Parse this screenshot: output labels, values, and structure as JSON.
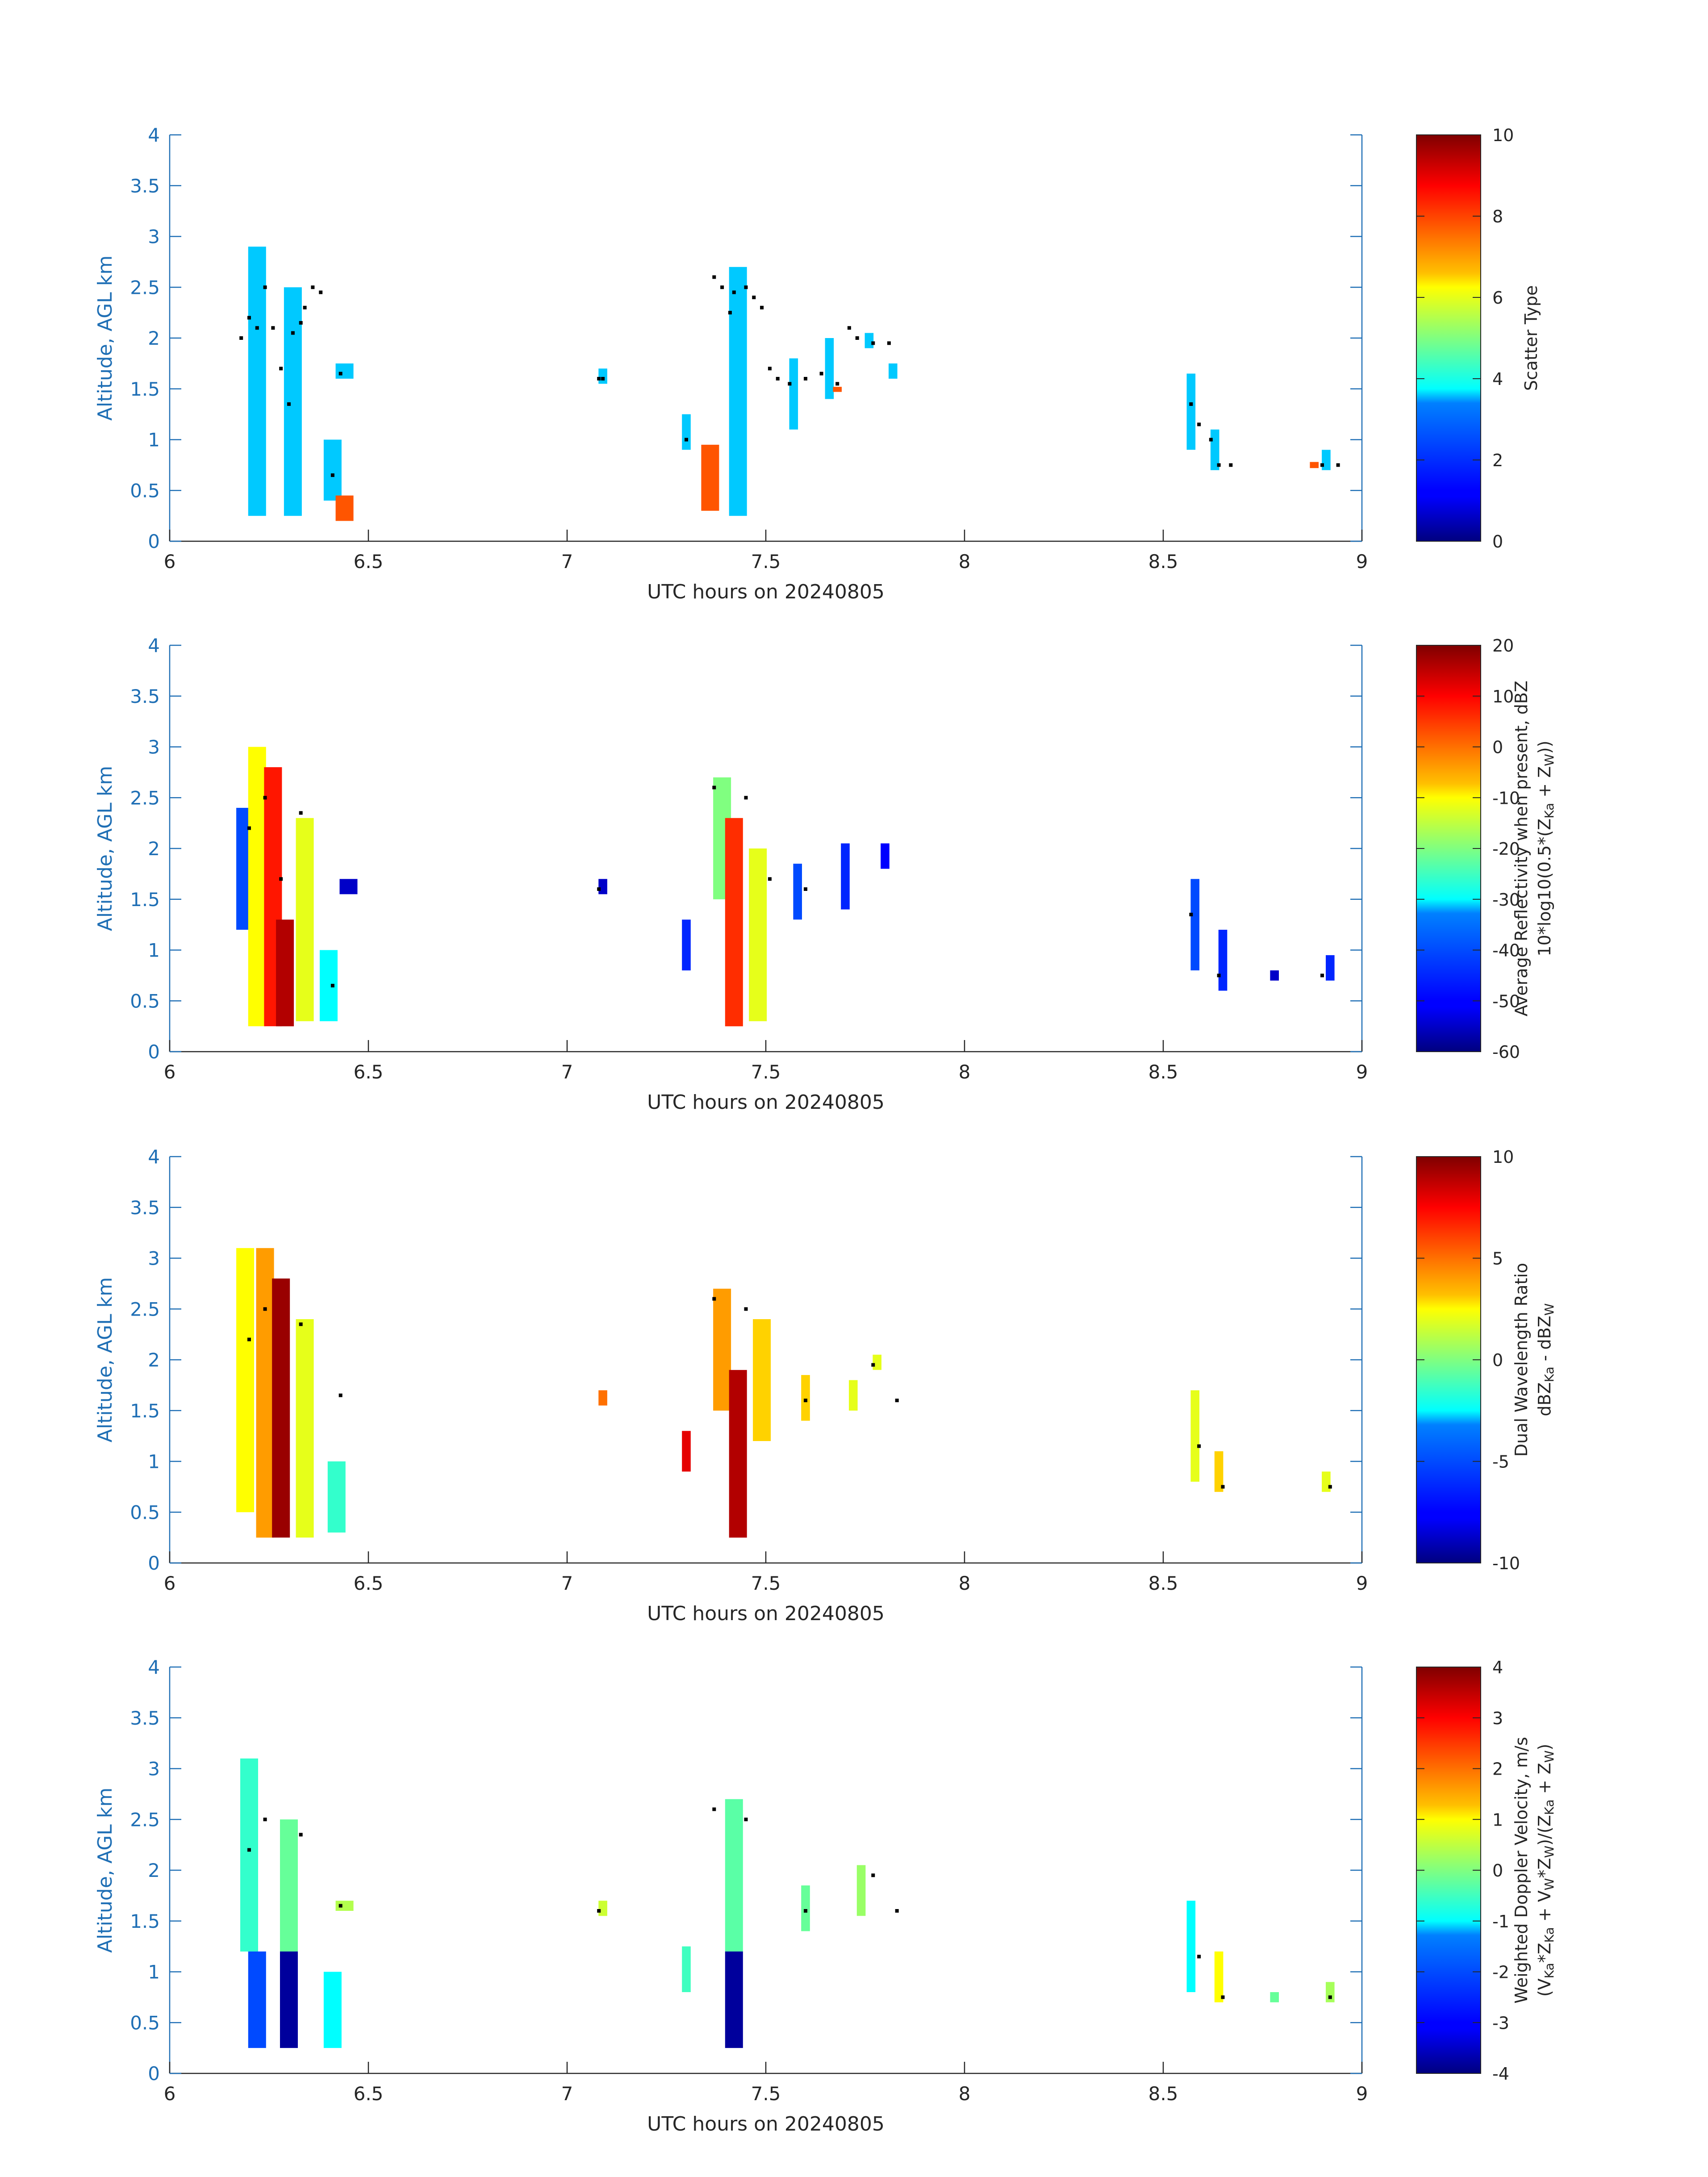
{
  "chart_data": [
    {
      "type": "heatmap",
      "xlabel": "UTC hours on 20240805",
      "ylabel": "Altitude, AGL km",
      "xlim": [
        6,
        9
      ],
      "ylim": [
        0,
        4
      ],
      "xticks": [
        "6",
        "6.5",
        "7",
        "7.5",
        "8",
        "8.5",
        "9"
      ],
      "yticks": [
        "0",
        "0.5",
        "1",
        "1.5",
        "2",
        "2.5",
        "3",
        "3.5",
        "4"
      ],
      "colorbar_label": [
        "Scatter Type"
      ],
      "colorbar_range": [
        0,
        10
      ],
      "colorbar_ticks": [
        "0",
        "2",
        "4",
        "6",
        "8",
        "10"
      ],
      "colormap": "jet",
      "grid": false,
      "cells": [
        [
          6.22,
          0.25,
          2.9,
          3.6
        ],
        [
          6.31,
          0.25,
          2.5,
          3.6
        ],
        [
          6.41,
          0.4,
          1.0,
          3.6
        ],
        [
          6.44,
          1.6,
          1.75,
          3.6
        ],
        [
          7.09,
          1.55,
          1.7,
          3.6
        ],
        [
          7.3,
          0.9,
          1.25,
          3.6
        ],
        [
          7.43,
          0.25,
          2.7,
          3.6
        ],
        [
          7.57,
          1.1,
          1.8,
          3.6
        ],
        [
          7.66,
          1.4,
          2.0,
          3.6
        ],
        [
          7.76,
          1.9,
          2.05,
          3.6
        ],
        [
          7.82,
          1.6,
          1.75,
          3.6
        ],
        [
          8.57,
          0.9,
          1.65,
          3.6
        ],
        [
          8.63,
          0.7,
          1.1,
          3.6
        ],
        [
          8.91,
          0.7,
          0.9,
          3.6
        ],
        [
          6.44,
          0.2,
          0.45,
          7.8
        ],
        [
          7.36,
          0.3,
          0.95,
          7.8
        ],
        [
          7.68,
          1.47,
          1.52,
          7.8
        ],
        [
          8.88,
          0.72,
          0.78,
          7.8
        ]
      ],
      "points": [
        [
          6.18,
          2.0
        ],
        [
          6.2,
          2.2
        ],
        [
          6.22,
          2.1
        ],
        [
          6.24,
          2.5
        ],
        [
          6.26,
          2.1
        ],
        [
          6.28,
          1.7
        ],
        [
          6.3,
          1.35
        ],
        [
          6.31,
          2.05
        ],
        [
          6.33,
          2.15
        ],
        [
          6.34,
          2.3
        ],
        [
          6.36,
          2.5
        ],
        [
          6.38,
          2.45
        ],
        [
          6.41,
          0.65
        ],
        [
          6.43,
          1.65
        ],
        [
          7.08,
          1.6
        ],
        [
          7.09,
          1.6
        ],
        [
          7.3,
          1.0
        ],
        [
          7.37,
          2.6
        ],
        [
          7.39,
          2.5
        ],
        [
          7.41,
          2.25
        ],
        [
          7.42,
          2.45
        ],
        [
          7.45,
          2.5
        ],
        [
          7.47,
          2.4
        ],
        [
          7.49,
          2.3
        ],
        [
          7.51,
          1.7
        ],
        [
          7.53,
          1.6
        ],
        [
          7.56,
          1.55
        ],
        [
          7.6,
          1.6
        ],
        [
          7.64,
          1.65
        ],
        [
          7.68,
          1.55
        ],
        [
          7.71,
          2.1
        ],
        [
          7.73,
          2.0
        ],
        [
          7.77,
          1.95
        ],
        [
          7.81,
          1.95
        ],
        [
          8.57,
          1.35
        ],
        [
          8.59,
          1.15
        ],
        [
          8.62,
          1.0
        ],
        [
          8.64,
          0.75
        ],
        [
          8.67,
          0.75
        ],
        [
          8.9,
          0.75
        ],
        [
          8.94,
          0.75
        ]
      ]
    },
    {
      "type": "heatmap",
      "xlabel": "UTC hours on 20240805",
      "ylabel": "Altitude, AGL km",
      "xlim": [
        6,
        9
      ],
      "ylim": [
        0,
        4
      ],
      "xticks": [
        "6",
        "6.5",
        "7",
        "7.5",
        "8",
        "8.5",
        "9"
      ],
      "yticks": [
        "0",
        "0.5",
        "1",
        "1.5",
        "2",
        "2.5",
        "3",
        "3.5",
        "4"
      ],
      "colorbar_label": [
        "Average Reflectivity when present, dBZ",
        "10*log10(0.5*(Z_Ka + Z_W))"
      ],
      "colorbar_range": [
        -60,
        20
      ],
      "colorbar_ticks": [
        "-60",
        "-50",
        "-40",
        "-30",
        "-20",
        "-10",
        "0",
        "10",
        "20"
      ],
      "colormap": "jet",
      "grid": false,
      "cells": [
        [
          6.19,
          1.2,
          2.4,
          -40
        ],
        [
          6.22,
          0.25,
          3.0,
          -10
        ],
        [
          6.26,
          0.25,
          2.8,
          8
        ],
        [
          6.29,
          0.25,
          1.3,
          16
        ],
        [
          6.34,
          0.3,
          2.3,
          -12
        ],
        [
          6.4,
          0.3,
          1.0,
          -30
        ],
        [
          6.45,
          1.55,
          1.7,
          -55
        ],
        [
          7.09,
          1.55,
          1.7,
          -55
        ],
        [
          7.3,
          0.8,
          1.3,
          -45
        ],
        [
          7.39,
          1.5,
          2.7,
          -20
        ],
        [
          7.42,
          0.25,
          2.3,
          6
        ],
        [
          7.48,
          0.3,
          2.0,
          -12
        ],
        [
          7.58,
          1.3,
          1.85,
          -40
        ],
        [
          7.7,
          1.4,
          2.05,
          -45
        ],
        [
          7.8,
          1.8,
          2.05,
          -50
        ],
        [
          8.58,
          0.8,
          1.7,
          -40
        ],
        [
          8.65,
          0.6,
          1.2,
          -45
        ],
        [
          8.78,
          0.7,
          0.8,
          -55
        ],
        [
          8.92,
          0.7,
          0.95,
          -45
        ]
      ],
      "points": [
        [
          6.2,
          2.2
        ],
        [
          6.24,
          2.5
        ],
        [
          6.28,
          1.7
        ],
        [
          6.33,
          2.35
        ],
        [
          6.41,
          0.65
        ],
        [
          7.08,
          1.6
        ],
        [
          7.37,
          2.6
        ],
        [
          7.45,
          2.5
        ],
        [
          7.51,
          1.7
        ],
        [
          7.6,
          1.6
        ],
        [
          8.57,
          1.35
        ],
        [
          8.64,
          0.75
        ],
        [
          8.9,
          0.75
        ]
      ]
    },
    {
      "type": "heatmap",
      "xlabel": "UTC hours on 20240805",
      "ylabel": "Altitude, AGL km",
      "xlim": [
        6,
        9
      ],
      "ylim": [
        0,
        4
      ],
      "xticks": [
        "6",
        "6.5",
        "7",
        "7.5",
        "8",
        "8.5",
        "9"
      ],
      "yticks": [
        "0",
        "0.5",
        "1",
        "1.5",
        "2",
        "2.5",
        "3",
        "3.5",
        "4"
      ],
      "colorbar_label": [
        "Dual Wavelength Ratio",
        "dBZ_Ka - dBZ_W"
      ],
      "colorbar_range": [
        -10,
        10
      ],
      "colorbar_ticks": [
        "-10",
        "-5",
        "0",
        "5",
        "10"
      ],
      "colormap": "jet",
      "grid": false,
      "cells": [
        [
          6.19,
          0.5,
          3.1,
          2.5
        ],
        [
          6.24,
          0.25,
          3.1,
          4
        ],
        [
          6.28,
          0.25,
          2.8,
          9.5
        ],
        [
          6.34,
          0.25,
          2.4,
          2
        ],
        [
          6.42,
          0.3,
          1.0,
          -1.5
        ],
        [
          7.09,
          1.55,
          1.7,
          5
        ],
        [
          7.3,
          0.9,
          1.3,
          8
        ],
        [
          7.39,
          1.5,
          2.7,
          4
        ],
        [
          7.43,
          0.25,
          1.9,
          9
        ],
        [
          7.49,
          1.2,
          2.4,
          3
        ],
        [
          7.6,
          1.4,
          1.85,
          3
        ],
        [
          7.72,
          1.5,
          1.8,
          2
        ],
        [
          7.78,
          1.9,
          2.05,
          2
        ],
        [
          8.58,
          0.8,
          1.7,
          2
        ],
        [
          8.64,
          0.7,
          1.1,
          3
        ],
        [
          8.91,
          0.7,
          0.9,
          2
        ]
      ],
      "points": [
        [
          6.2,
          2.2
        ],
        [
          6.24,
          2.5
        ],
        [
          6.33,
          2.35
        ],
        [
          6.43,
          1.65
        ],
        [
          7.37,
          2.6
        ],
        [
          7.45,
          2.5
        ],
        [
          7.6,
          1.6
        ],
        [
          7.77,
          1.95
        ],
        [
          7.83,
          1.6
        ],
        [
          8.59,
          1.15
        ],
        [
          8.65,
          0.75
        ],
        [
          8.92,
          0.75
        ]
      ]
    },
    {
      "type": "heatmap",
      "xlabel": "UTC hours on 20240805",
      "ylabel": "Altitude, AGL km",
      "xlim": [
        6,
        9
      ],
      "ylim": [
        0,
        4
      ],
      "xticks": [
        "6",
        "6.5",
        "7",
        "7.5",
        "8",
        "8.5",
        "9"
      ],
      "yticks": [
        "0",
        "0.5",
        "1",
        "1.5",
        "2",
        "2.5",
        "3",
        "3.5",
        "4"
      ],
      "colorbar_label": [
        "Weighted Doppler Velocity, m/s",
        "(V_Ka*Z_Ka + V_W*Z_W)/(Z_Ka + Z_W)"
      ],
      "colorbar_range": [
        -4,
        4
      ],
      "colorbar_ticks": [
        "-4",
        "-3",
        "-2",
        "-1",
        "0",
        "1",
        "2",
        "3",
        "4"
      ],
      "colormap": "jet",
      "grid": false,
      "cells": [
        [
          6.2,
          1.2,
          3.1,
          -0.6
        ],
        [
          6.3,
          1.2,
          2.5,
          -0.2
        ],
        [
          6.22,
          0.25,
          1.2,
          -2.0
        ],
        [
          6.3,
          0.25,
          1.2,
          -3.8
        ],
        [
          6.41,
          0.25,
          1.0,
          -1.0
        ],
        [
          6.44,
          1.6,
          1.7,
          0.4
        ],
        [
          7.09,
          1.55,
          1.7,
          0.6
        ],
        [
          7.3,
          0.8,
          1.25,
          -0.5
        ],
        [
          7.42,
          1.2,
          2.7,
          -0.3
        ],
        [
          7.42,
          0.25,
          1.2,
          -3.8
        ],
        [
          7.6,
          1.4,
          1.85,
          -0.2
        ],
        [
          7.74,
          1.55,
          2.05,
          0.2
        ],
        [
          8.57,
          0.8,
          1.7,
          -1.0
        ],
        [
          8.64,
          0.7,
          1.2,
          1.0
        ],
        [
          8.78,
          0.7,
          0.8,
          -0.2
        ],
        [
          8.92,
          0.7,
          0.9,
          0.3
        ]
      ],
      "points": [
        [
          6.2,
          2.2
        ],
        [
          6.24,
          2.5
        ],
        [
          6.33,
          2.35
        ],
        [
          6.43,
          1.65
        ],
        [
          7.08,
          1.6
        ],
        [
          7.37,
          2.6
        ],
        [
          7.45,
          2.5
        ],
        [
          7.6,
          1.6
        ],
        [
          7.77,
          1.95
        ],
        [
          7.83,
          1.6
        ],
        [
          8.59,
          1.15
        ],
        [
          8.65,
          0.75
        ],
        [
          8.92,
          0.75
        ]
      ]
    }
  ]
}
